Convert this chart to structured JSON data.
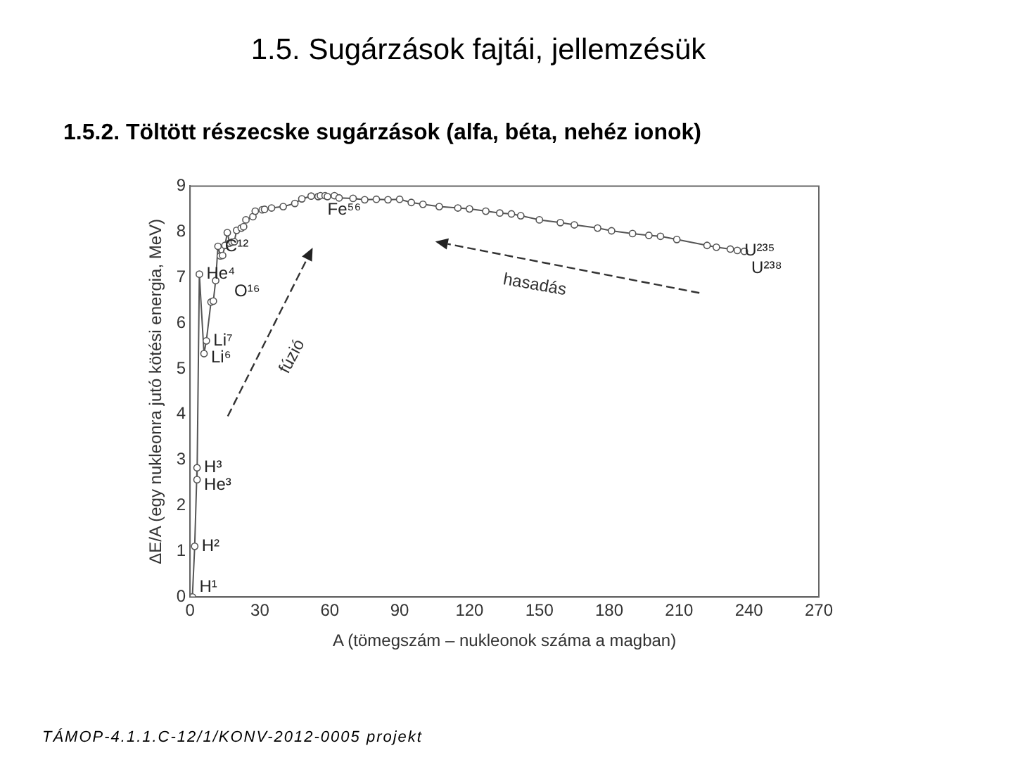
{
  "chart_data": {
    "type": "line",
    "title": "1.5. Sugárzások fajtái, jellemzésük",
    "subtitle": "1.5.2. Töltött részecske sugárzások (alfa, béta, nehéz ionok)",
    "xlabel": "A (tömegszám – nukleonok száma a magban)",
    "ylabel": "ΔE/A (egy nukleonra jutó kötési energia, MeV)",
    "x": [
      1,
      2,
      3,
      3,
      4,
      6,
      7,
      9,
      10,
      11,
      12,
      13,
      14,
      15,
      16,
      17,
      18,
      19,
      20,
      22,
      23,
      24,
      27,
      28,
      31,
      32,
      35,
      40,
      45,
      48,
      52,
      55,
      56,
      58,
      59,
      62,
      64,
      70,
      75,
      80,
      85,
      90,
      95,
      100,
      107,
      115,
      120,
      127,
      133,
      138,
      142,
      150,
      159,
      165,
      175,
      181,
      190,
      197,
      202,
      209,
      222,
      226,
      232,
      235,
      238
    ],
    "values": [
      0,
      1.11,
      2.83,
      2.57,
      7.07,
      5.33,
      5.61,
      6.46,
      6.48,
      6.93,
      7.68,
      7.47,
      7.48,
      7.7,
      7.98,
      7.75,
      7.77,
      7.78,
      8.03,
      8.08,
      8.11,
      8.26,
      8.33,
      8.45,
      8.48,
      8.49,
      8.52,
      8.55,
      8.62,
      8.72,
      8.78,
      8.77,
      8.79,
      8.79,
      8.77,
      8.79,
      8.74,
      8.73,
      8.7,
      8.71,
      8.7,
      8.71,
      8.64,
      8.6,
      8.55,
      8.52,
      8.5,
      8.45,
      8.41,
      8.39,
      8.35,
      8.26,
      8.2,
      8.15,
      8.08,
      8.02,
      7.96,
      7.92,
      7.9,
      7.83,
      7.7,
      7.66,
      7.62,
      7.59,
      7.57
    ],
    "color": "#555555",
    "marker": "circle",
    "xlim": [
      0,
      270
    ],
    "xticks": [
      0,
      30,
      60,
      90,
      120,
      150,
      180,
      210,
      240,
      270
    ],
    "ylim": [
      0,
      9
    ],
    "yticks": [
      0,
      1,
      2,
      3,
      4,
      5,
      6,
      7,
      8,
      9
    ],
    "annotations": [
      {
        "text": "H¹",
        "x": 1,
        "y": 0
      },
      {
        "text": "H²",
        "x": 2,
        "y": 1.11
      },
      {
        "text": "H³",
        "x": 3,
        "y": 2.83
      },
      {
        "text": "He³",
        "x": 3,
        "y": 2.57
      },
      {
        "text": "He⁴",
        "x": 4,
        "y": 7.07
      },
      {
        "text": "Li⁷",
        "x": 7,
        "y": 5.61
      },
      {
        "text": "Li⁶",
        "x": 6,
        "y": 5.33
      },
      {
        "text": "C¹²",
        "x": 12,
        "y": 7.68
      },
      {
        "text": "O¹⁶",
        "x": 16,
        "y": 7.98
      },
      {
        "text": "Fe⁵⁶",
        "x": 56,
        "y": 8.79
      },
      {
        "text": "U²³⁵",
        "x": 235,
        "y": 7.59
      },
      {
        "text": "U²³⁸",
        "x": 238,
        "y": 7.57
      },
      "fúzió",
      "hasadás",
      "TÁMOP-4.1.1.C-12/1/KONV-2012-0005 projekt"
    ]
  }
}
